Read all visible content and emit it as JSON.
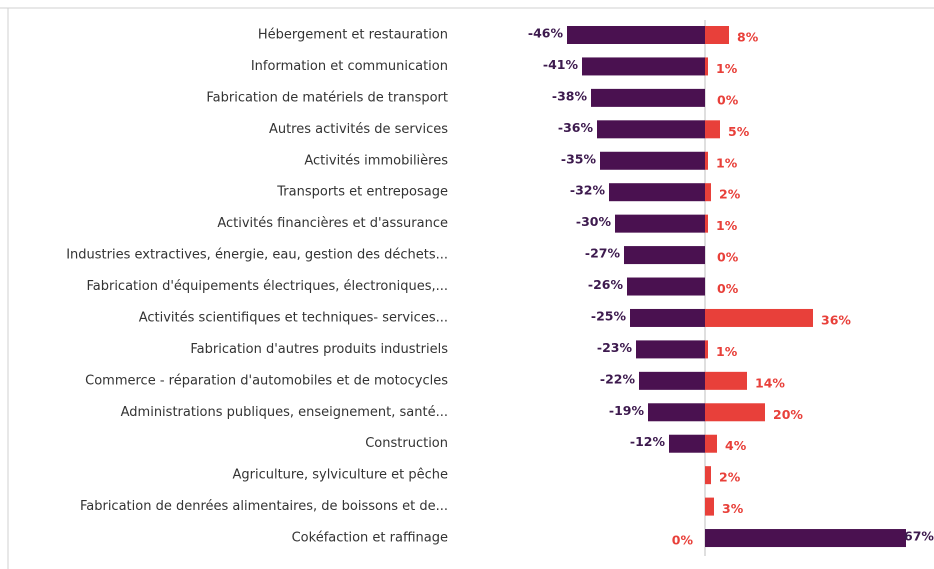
{
  "chart_data": {
    "type": "diverging-bar",
    "categories": [
      "Hébergement et restauration",
      "Information et communication",
      "Fabrication de matériels de transport",
      "Autres activités de services",
      "Activités immobilières",
      "Transports et entreposage",
      "Activités financières et d'assurance",
      "Industries extractives, énergie, eau, gestion des déchets...",
      "Fabrication d'équipements électriques, électroniques,...",
      "Activités scientifiques et techniques-  services...",
      "Fabrication d'autres produits industriels",
      "Commerce - réparation d'automobiles et de motocycles",
      "Administrations publiques, enseignement, santé...",
      "Construction",
      "Agriculture, sylviculture et pêche",
      "Fabrication de denrées alimentaires, de boissons et de...",
      "Cokéfaction et raffinage"
    ],
    "series": [
      {
        "color": "#4a1150",
        "label_color": "#3d1a4e",
        "values": [
          -46,
          -41,
          -38,
          -36,
          -35,
          -32,
          -30,
          -27,
          -26,
          -25,
          -23,
          -22,
          -19,
          -12,
          null,
          null,
          67
        ],
        "value_labels": [
          "-46%",
          "-41%",
          "-38%",
          "-36%",
          "-35%",
          "-32%",
          "-30%",
          "-27%",
          "-26%",
          "-25%",
          "-23%",
          "-22%",
          "-19%",
          "-12%",
          null,
          null,
          "67%"
        ]
      },
      {
        "color": "#e8403a",
        "label_color": "#e8403a",
        "values": [
          8,
          1,
          0,
          5,
          1,
          2,
          1,
          0,
          0,
          36,
          1,
          14,
          20,
          4,
          2,
          3,
          0
        ],
        "value_labels": [
          "8%",
          "1%",
          "0%",
          "5%",
          "1%",
          "2%",
          "1%",
          "0%",
          "0%",
          "36%",
          "1%",
          "14%",
          "20%",
          "4%",
          "2%",
          "3%",
          "0%"
        ]
      }
    ]
  }
}
